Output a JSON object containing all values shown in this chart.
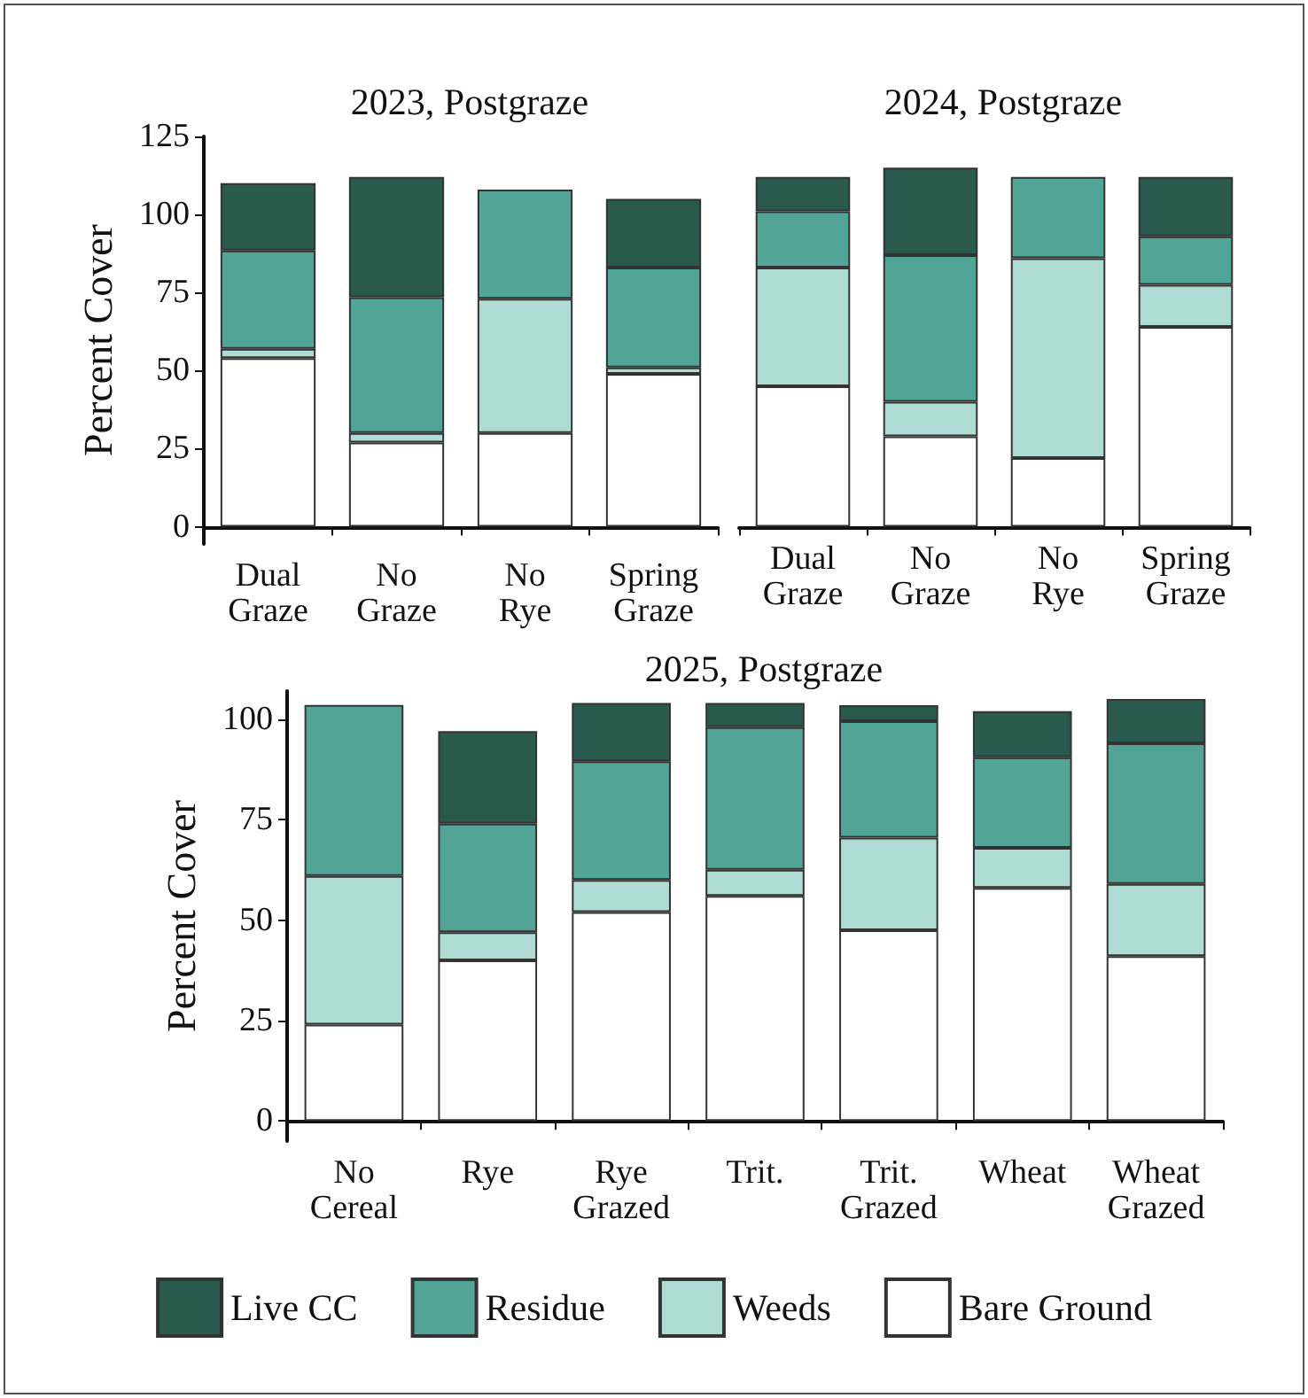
{
  "chart_data": [
    {
      "type": "bar",
      "title": "2023, Postgraze",
      "ylabel": "Percent Cover",
      "categories": [
        "Dual Graze",
        "No Graze",
        "No Rye",
        "Spring Graze"
      ],
      "stacked": true,
      "grid": false,
      "legend": false,
      "ylim": [
        -5.5,
        125
      ],
      "yticks": [
        0,
        25,
        50,
        75,
        100,
        125
      ],
      "series": [
        {
          "color": "#ffffff",
          "values": [
            54,
            27,
            30,
            49
          ]
        },
        {
          "color": "#aedcd5",
          "values": [
            3,
            3,
            43,
            2
          ]
        },
        {
          "color": "#52a497",
          "values": [
            31.5,
            43.5,
            35,
            32
          ]
        },
        {
          "color": "#2a5a4e",
          "values": [
            21.5,
            38.5,
            null,
            22
          ]
        }
      ]
    },
    {
      "type": "bar",
      "title": "2024, Postgraze",
      "categories": [
        "Dual Graze",
        "No Graze",
        "No Rye",
        "Spring Graze"
      ],
      "stacked": true,
      "grid": false,
      "legend": false,
      "tick_labels": "x",
      "ylim": [
        0,
        125
      ],
      "yticks": [
        0,
        25,
        50,
        75,
        100,
        125
      ],
      "series": [
        {
          "color": "#ffffff",
          "values": [
            45,
            29,
            22,
            64
          ]
        },
        {
          "color": "#aedcd5",
          "values": [
            38,
            11,
            64,
            13.5
          ]
        },
        {
          "color": "#52a497",
          "values": [
            18,
            47,
            26,
            15.5
          ]
        },
        {
          "color": "#2a5a4e",
          "values": [
            11,
            28,
            null,
            19
          ]
        }
      ]
    },
    {
      "type": "bar",
      "title": "2025, Postgraze",
      "ylabel": "Percent Cover",
      "categories": [
        "No Cereal",
        "Rye",
        "Rye Grazed",
        "Trit.",
        "Trit. Grazed",
        "Wheat",
        "Wheat Grazed"
      ],
      "stacked": true,
      "grid": false,
      "legend": "bottom",
      "ylim": [
        -5,
        107
      ],
      "yticks": [
        0,
        25,
        50,
        75,
        100
      ],
      "series": [
        {
          "name": "Bare Ground",
          "color": "#ffffff",
          "values": [
            24,
            40,
            52,
            56,
            47.5,
            58,
            41
          ]
        },
        {
          "name": "Weeds",
          "color": "#aedcd5",
          "values": [
            37,
            7,
            8,
            6.5,
            23,
            10,
            18
          ]
        },
        {
          "name": "Residue",
          "color": "#52a497",
          "values": [
            42.5,
            27,
            29.5,
            35.5,
            29,
            22.5,
            35
          ]
        },
        {
          "name": "Live CC",
          "color": "#2a5a4e",
          "values": [
            null,
            23,
            14.5,
            6,
            4,
            11.5,
            11
          ]
        }
      ]
    }
  ]
}
